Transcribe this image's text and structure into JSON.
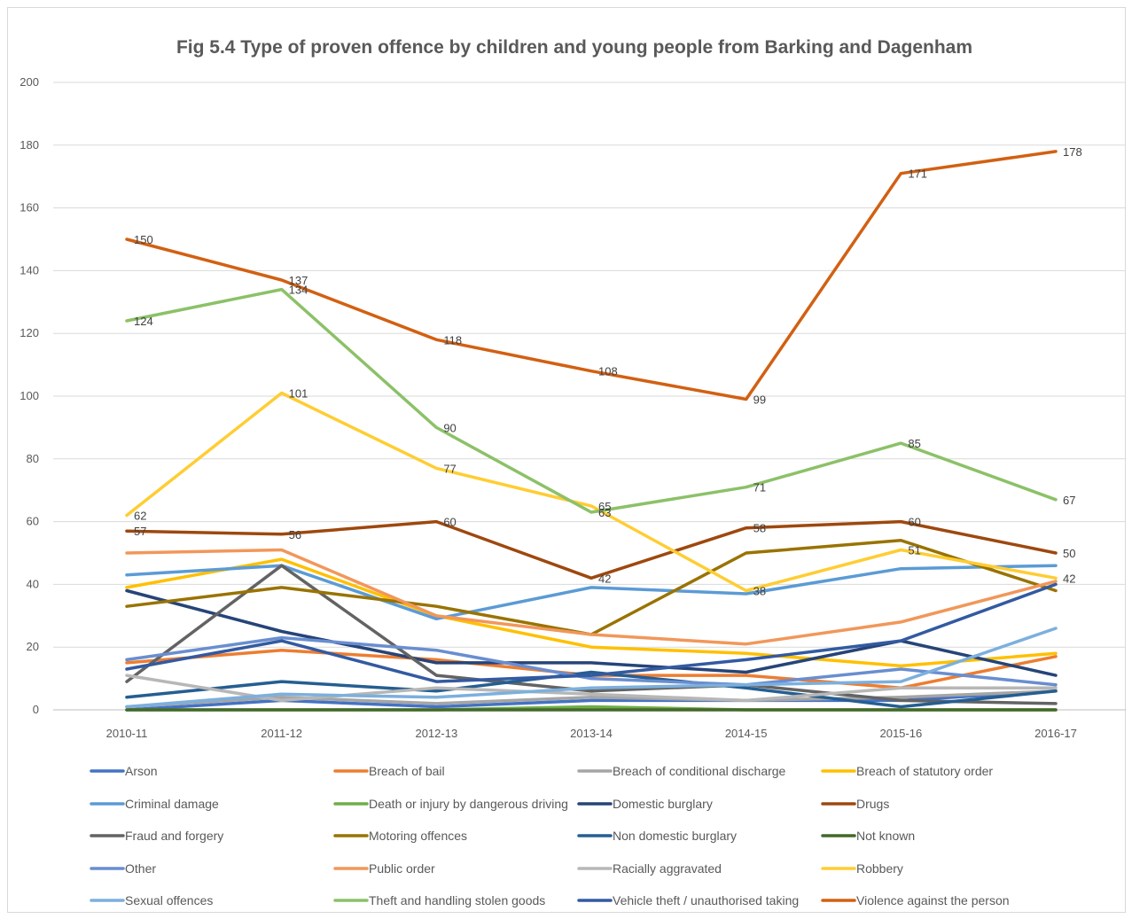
{
  "chart_data": {
    "type": "line",
    "title": "Fig 5.4 Type of proven offence by children and young people from Barking and Dagenham",
    "xlabel": "",
    "ylabel": "",
    "ylim": [
      0,
      200
    ],
    "yticks": [
      "0",
      "20",
      "40",
      "60",
      "80",
      "100",
      "120",
      "140",
      "160",
      "180",
      "200"
    ],
    "categories": [
      "2010-11",
      "2011-12",
      "2012-13",
      "2013-14",
      "2014-15",
      "2015-16",
      "2016-17"
    ],
    "grid": true,
    "legend_position": "bottom",
    "series": [
      {
        "name": "Arson",
        "color": "#4472C4",
        "values": [
          0,
          3,
          1,
          3,
          3,
          3,
          6
        ]
      },
      {
        "name": "Breach of bail",
        "color": "#ED7D31",
        "values": [
          15,
          19,
          16,
          11,
          11,
          7,
          17
        ]
      },
      {
        "name": "Breach of conditional discharge",
        "color": "#A5A5A5",
        "values": [
          1,
          4,
          2,
          4,
          3,
          4,
          6
        ]
      },
      {
        "name": "Breach of statutory order",
        "color": "#FFC000",
        "values": [
          39,
          48,
          30,
          20,
          18,
          14,
          18
        ]
      },
      {
        "name": "Criminal damage",
        "color": "#5B9BD5",
        "values": [
          43,
          46,
          29,
          39,
          37,
          45,
          46
        ]
      },
      {
        "name": "Death or injury by dangerous driving",
        "color": "#70AD47",
        "values": [
          0,
          0,
          0,
          1,
          0,
          0,
          0
        ]
      },
      {
        "name": "Domestic burglary",
        "color": "#264478",
        "values": [
          38,
          25,
          15,
          15,
          12,
          22,
          11
        ]
      },
      {
        "name": "Drugs",
        "color": "#9E480E",
        "values": [
          57,
          56,
          60,
          42,
          58,
          60,
          50
        ],
        "labels": [
          "57",
          "56",
          "60",
          "42",
          "58",
          "60",
          "50"
        ]
      },
      {
        "name": "Fraud and forgery",
        "color": "#636363",
        "values": [
          9,
          46,
          11,
          6,
          8,
          3,
          2
        ]
      },
      {
        "name": "Motoring offences",
        "color": "#997300",
        "values": [
          33,
          39,
          33,
          24,
          50,
          54,
          38
        ]
      },
      {
        "name": "Non domestic burglary",
        "color": "#255E91",
        "values": [
          4,
          9,
          6,
          12,
          7,
          1,
          6
        ]
      },
      {
        "name": "Not known",
        "color": "#43682B",
        "values": [
          0,
          0,
          0,
          0,
          0,
          0,
          0
        ]
      },
      {
        "name": "Other",
        "color": "#698ED0",
        "values": [
          16,
          23,
          19,
          10,
          8,
          13,
          8
        ]
      },
      {
        "name": "Public order",
        "color": "#F1975A",
        "values": [
          50,
          51,
          30,
          24,
          21,
          28,
          41
        ]
      },
      {
        "name": "Racially aggravated",
        "color": "#B7B7B7",
        "values": [
          11,
          3,
          7,
          5,
          3,
          7,
          7
        ]
      },
      {
        "name": "Robbery",
        "color": "#FFCD33",
        "values": [
          62,
          101,
          77,
          65,
          38,
          51,
          42
        ],
        "labels": [
          "62",
          "101",
          "77",
          "65",
          "38",
          "51",
          "42"
        ]
      },
      {
        "name": "Sexual offences",
        "color": "#7CAFDD",
        "values": [
          1,
          5,
          4,
          7,
          8,
          9,
          26
        ]
      },
      {
        "name": "Theft and handling stolen goods",
        "color": "#8CC168",
        "values": [
          124,
          134,
          90,
          63,
          71,
          85,
          67
        ],
        "labels": [
          "124",
          "134",
          "90",
          "63",
          "71",
          "85",
          "67"
        ]
      },
      {
        "name": "Vehicle theft / unauthorised taking",
        "color": "#335AA1",
        "values": [
          13,
          22,
          9,
          11,
          16,
          22,
          40
        ]
      },
      {
        "name": "Violence against the person",
        "color": "#D26012",
        "values": [
          150,
          137,
          118,
          108,
          99,
          171,
          178
        ],
        "labels": [
          "150",
          "137",
          "118",
          "108",
          "99",
          "171",
          "178"
        ]
      }
    ]
  }
}
